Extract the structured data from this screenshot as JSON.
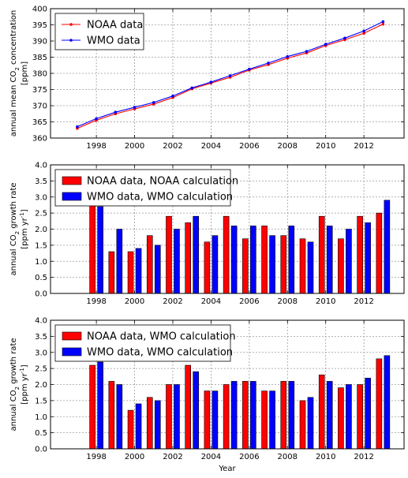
{
  "chart_data": [
    {
      "type": "line",
      "ylabel_lines": [
        "annual mean CO",
        "2",
        " concentration",
        "[ppm]"
      ],
      "xlabel": "",
      "xlim": [
        1995.6,
        2014.1
      ],
      "ylim": [
        360,
        400
      ],
      "xticks": [
        1998,
        2000,
        2002,
        2004,
        2006,
        2008,
        2010,
        2012
      ],
      "yticks": [
        360,
        365,
        370,
        375,
        380,
        385,
        390,
        395,
        400
      ],
      "x": [
        1997,
        1998,
        1999,
        2000,
        2001,
        2002,
        2003,
        2004,
        2005,
        2006,
        2007,
        2008,
        2009,
        2010,
        2011,
        2012,
        2013
      ],
      "series": [
        {
          "name": "NOAA data",
          "color": "#ff0000",
          "values": [
            363.0,
            365.5,
            367.5,
            369.0,
            370.5,
            372.5,
            375.2,
            377.0,
            378.8,
            381.0,
            382.7,
            384.7,
            386.3,
            388.6,
            390.4,
            392.4,
            395.2
          ]
        },
        {
          "name": "WMO data",
          "color": "#0000ff",
          "values": [
            363.5,
            366.0,
            368.0,
            369.5,
            371.0,
            373.0,
            375.5,
            377.3,
            379.3,
            381.3,
            383.2,
            385.2,
            386.8,
            389.0,
            390.9,
            393.1,
            396.0
          ]
        }
      ],
      "grid": true,
      "legend_position": "upper-left"
    },
    {
      "type": "bar",
      "ylabel_lines": [
        "annual CO",
        "2",
        " growth rate",
        "[ppm yr",
        "-1",
        "]"
      ],
      "xlabel": "",
      "xlim": [
        1995.6,
        2014.1
      ],
      "ylim": [
        0,
        4
      ],
      "xticks": [
        1998,
        2000,
        2002,
        2004,
        2006,
        2008,
        2010,
        2012
      ],
      "yticks": [
        "0.0",
        "0.5",
        "1.0",
        "1.5",
        "2.0",
        "2.5",
        "3.0",
        "3.5",
        "4.0"
      ],
      "x": [
        1998,
        1999,
        2000,
        2001,
        2002,
        2003,
        2004,
        2005,
        2006,
        2007,
        2008,
        2009,
        2010,
        2011,
        2012,
        2013
      ],
      "series": [
        {
          "name": "NOAA data, NOAA calculation",
          "color": "#ff0000",
          "values": [
            2.8,
            1.3,
            1.3,
            1.8,
            2.4,
            2.2,
            1.6,
            2.4,
            1.7,
            2.1,
            1.8,
            1.7,
            2.4,
            1.7,
            2.4,
            2.5
          ]
        },
        {
          "name": "WMO data, WMO calculation",
          "color": "#0000ff",
          "values": [
            2.7,
            2.0,
            1.4,
            1.5,
            2.0,
            2.4,
            1.8,
            2.1,
            2.1,
            1.8,
            2.1,
            1.6,
            2.1,
            2.0,
            2.2,
            2.9
          ]
        }
      ],
      "grid": true,
      "legend_position": "upper-left"
    },
    {
      "type": "bar",
      "ylabel_lines": [
        "annual CO",
        "2",
        " growth rate",
        "[ppm yr",
        "-1",
        "]"
      ],
      "xlabel": "Year",
      "xlim": [
        1995.6,
        2014.1
      ],
      "ylim": [
        0,
        4
      ],
      "xticks": [
        1998,
        2000,
        2002,
        2004,
        2006,
        2008,
        2010,
        2012
      ],
      "yticks": [
        "0.0",
        "0.5",
        "1.0",
        "1.5",
        "2.0",
        "2.5",
        "3.0",
        "3.5",
        "4.0"
      ],
      "x": [
        1998,
        1999,
        2000,
        2001,
        2002,
        2003,
        2004,
        2005,
        2006,
        2007,
        2008,
        2009,
        2010,
        2011,
        2012,
        2013
      ],
      "series": [
        {
          "name": "NOAA data, WMO calculation",
          "color": "#ff0000",
          "values": [
            2.6,
            2.1,
            1.2,
            1.6,
            2.0,
            2.6,
            1.8,
            2.0,
            2.1,
            1.8,
            2.1,
            1.5,
            2.3,
            1.9,
            2.0,
            2.8
          ]
        },
        {
          "name": "WMO data, WMO calculation",
          "color": "#0000ff",
          "values": [
            2.7,
            2.0,
            1.4,
            1.5,
            2.0,
            2.4,
            1.8,
            2.1,
            2.1,
            1.8,
            2.1,
            1.6,
            2.1,
            2.0,
            2.2,
            2.9
          ]
        }
      ],
      "grid": true,
      "legend_position": "upper-left"
    }
  ]
}
